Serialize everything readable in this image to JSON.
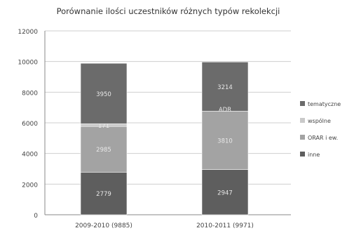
{
  "chart_data": {
    "type": "bar",
    "stacked": true,
    "title": "Porównanie ilości uczestników różnych typów rekolekcji",
    "xlabel": "",
    "ylabel": "",
    "ylim": [
      0,
      12000
    ],
    "yticks": [
      0,
      2000,
      4000,
      6000,
      8000,
      10000,
      12000
    ],
    "grid": true,
    "legend_position": "right",
    "categories": [
      "2009-2010 (9885)",
      "2010-2011 (9971)"
    ],
    "series": [
      {
        "name": "inne",
        "values": [
          2779,
          2947
        ],
        "labels": [
          "2779",
          "2947"
        ],
        "color": "#5e5e5e"
      },
      {
        "name": "ORAR i ew.",
        "values": [
          2985,
          3810
        ],
        "labels": [
          "2985",
          "3810"
        ],
        "color": "#a3a3a3"
      },
      {
        "name": "wspólne",
        "values": [
          171,
          0
        ],
        "labels": [
          "171",
          ""
        ],
        "color": "#c9c9c9"
      },
      {
        "name": "tematyczne",
        "values": [
          3950,
          3214
        ],
        "labels": [
          "3950",
          "3214"
        ],
        "color": "#6b6b6b"
      }
    ],
    "annotations": [
      {
        "text": "ADR",
        "category": 1,
        "approx_value": 6900
      }
    ]
  }
}
